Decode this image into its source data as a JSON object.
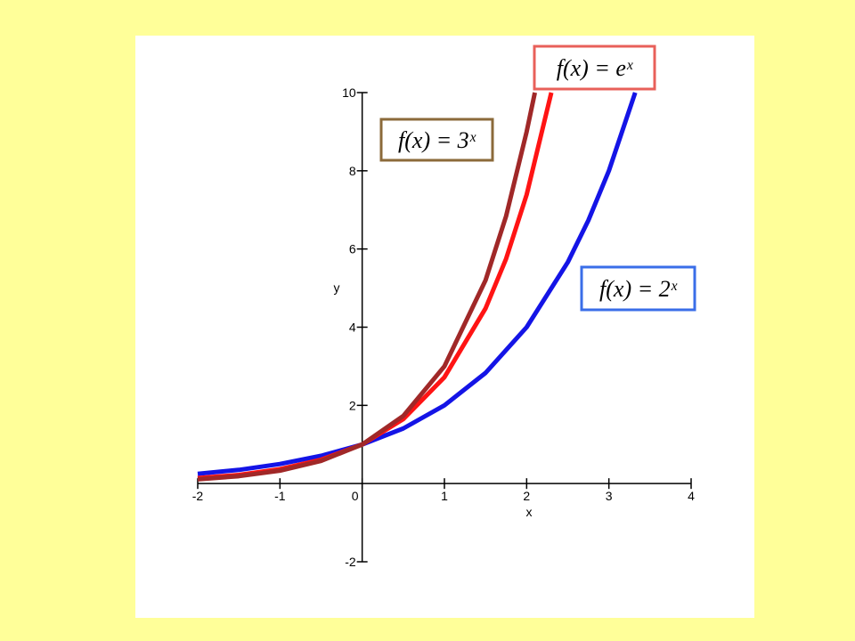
{
  "chart_data": {
    "type": "line",
    "x_label": "x",
    "y_label": "y",
    "xlim": [
      -2,
      4
    ],
    "ylim": [
      -2,
      10
    ],
    "xticks": [
      -2,
      -1,
      0,
      1,
      2,
      3,
      4
    ],
    "yticks": [
      -2,
      2,
      4,
      6,
      8,
      10
    ],
    "series": [
      {
        "name": "f(x) = 2ˣ",
        "color": "#1414e6",
        "box_color": "#3a6ee8",
        "x": [
          -2,
          -1.5,
          -1,
          -0.5,
          0,
          0.5,
          1,
          1.5,
          2,
          2.5,
          2.75,
          3,
          3.32
        ],
        "values": [
          0.25,
          0.35,
          0.5,
          0.71,
          1,
          1.41,
          2,
          2.83,
          4,
          5.66,
          6.73,
          8,
          10
        ]
      },
      {
        "name": "f(x) = eˣ",
        "color": "#ff1414",
        "box_color": "#e8605a",
        "x": [
          -2,
          -1.5,
          -1,
          -0.5,
          0,
          0.5,
          1,
          1.5,
          1.75,
          2,
          2.3
        ],
        "values": [
          0.14,
          0.22,
          0.37,
          0.61,
          1,
          1.65,
          2.72,
          4.48,
          5.75,
          7.39,
          10
        ]
      },
      {
        "name": "f(x) = 3ˣ",
        "color": "#a02828",
        "box_color": "#8b6a3a",
        "x": [
          -2,
          -1.5,
          -1,
          -0.5,
          0,
          0.5,
          1,
          1.5,
          1.75,
          2,
          2.1
        ],
        "values": [
          0.11,
          0.19,
          0.33,
          0.58,
          1,
          1.73,
          3,
          5.2,
          6.84,
          9,
          10
        ]
      }
    ]
  }
}
